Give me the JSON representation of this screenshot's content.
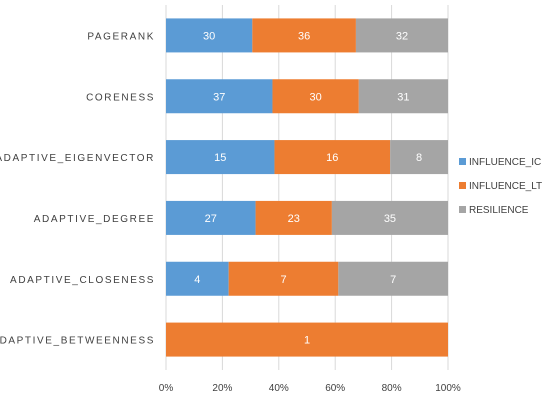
{
  "chart_data": {
    "type": "bar",
    "orientation": "horizontal",
    "stacked": "percent",
    "categories": [
      "PAGERANK",
      "CORENESS",
      "ADAPTIVE_EIGENVECTOR",
      "ADAPTIVE_DEGREE",
      "ADAPTIVE_CLOSENESS",
      "ADAPTIVE_BETWEENNESS"
    ],
    "series": [
      {
        "name": "INFLUENCE_IC",
        "color": "#5b9bd5",
        "values": [
          30,
          37,
          15,
          27,
          4,
          0
        ]
      },
      {
        "name": "INFLUENCE_LT",
        "color": "#ed7d31",
        "values": [
          36,
          30,
          16,
          23,
          7,
          1
        ]
      },
      {
        "name": "RESILIENCE",
        "color": "#a5a5a5",
        "values": [
          32,
          31,
          8,
          35,
          7,
          0
        ]
      }
    ],
    "xticks": [
      "0%",
      "20%",
      "40%",
      "60%",
      "80%",
      "100%"
    ],
    "xlim": [
      0,
      100
    ],
    "grid": true,
    "legend": "right"
  }
}
